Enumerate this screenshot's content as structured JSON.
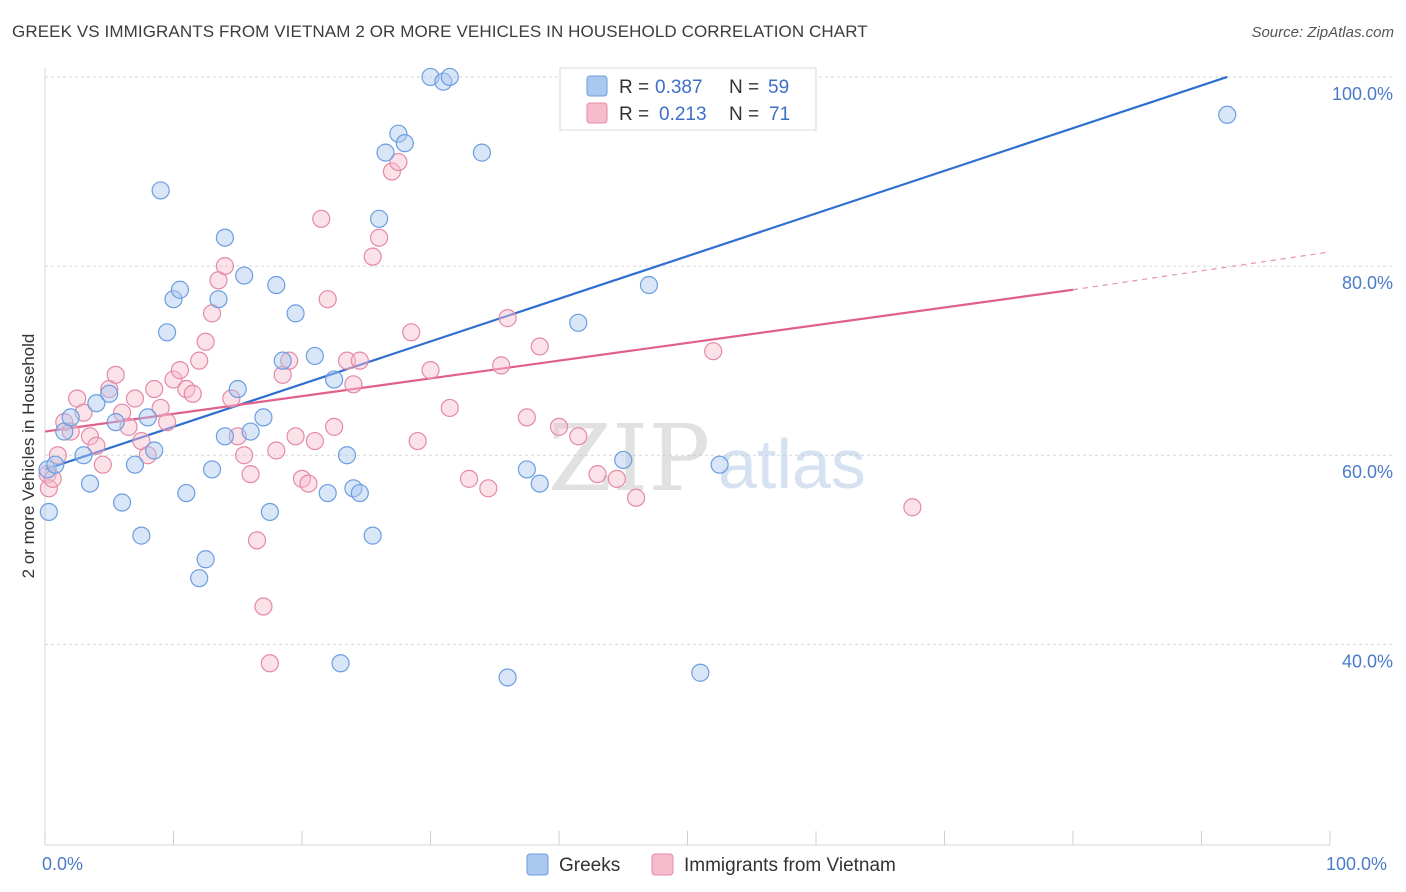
{
  "title": "GREEK VS IMMIGRANTS FROM VIETNAM 2 OR MORE VEHICLES IN HOUSEHOLD CORRELATION CHART",
  "source": "Source: ZipAtlas.com",
  "watermark": {
    "zip": "ZIP",
    "atlas": "atlas"
  },
  "colors": {
    "blue_fill": "#aac8f0",
    "blue_stroke": "#6b9ee0",
    "blue_line": "#2f6fd0",
    "pink_fill": "#f6bccd",
    "pink_stroke": "#e48aa6",
    "pink_line": "#e0608a",
    "grid": "#d6d6d6",
    "axis_label": "#4a7bc8"
  },
  "legend": {
    "rows": [
      {
        "r_label": "R =",
        "r_value": "0.387",
        "n_label": "N =",
        "n_value": "59",
        "color": "blue"
      },
      {
        "r_label": "R =",
        "r_value": "0.213",
        "n_label": "N =",
        "n_value": "71",
        "color": "pink"
      }
    ]
  },
  "chart_data": {
    "type": "scatter",
    "title": "GREEK VS IMMIGRANTS FROM VIETNAM 2 OR MORE VEHICLES IN HOUSEHOLD CORRELATION CHART",
    "xlabel": "",
    "ylabel": "2 or more Vehicles in Household",
    "xlim": [
      0,
      100
    ],
    "ylim": [
      20,
      101
    ],
    "x_tick_labels": [
      "0.0%",
      "100.0%"
    ],
    "y_ticks": [
      40,
      60,
      80,
      100
    ],
    "y_tick_labels": [
      "40.0%",
      "60.0%",
      "80.0%",
      "100.0%"
    ],
    "grid": true,
    "legend_position": "top-center",
    "series": [
      {
        "name": "Greeks",
        "color": "blue",
        "trend": {
          "x": [
            0,
            92
          ],
          "y": [
            58.5,
            100
          ]
        },
        "points": [
          [
            0.2,
            58.5
          ],
          [
            0.3,
            54
          ],
          [
            0.8,
            59
          ],
          [
            1.5,
            62.5
          ],
          [
            2,
            64
          ],
          [
            3,
            60
          ],
          [
            3.5,
            57
          ],
          [
            4,
            65.5
          ],
          [
            5,
            66.5
          ],
          [
            5.5,
            63.5
          ],
          [
            6,
            55
          ],
          [
            7,
            59
          ],
          [
            7.5,
            51.5
          ],
          [
            8,
            64
          ],
          [
            8.5,
            60.5
          ],
          [
            9,
            88
          ],
          [
            9.5,
            73
          ],
          [
            10,
            76.5
          ],
          [
            10.5,
            77.5
          ],
          [
            11,
            56
          ],
          [
            12,
            47
          ],
          [
            12.5,
            49
          ],
          [
            13,
            58.5
          ],
          [
            13.5,
            76.5
          ],
          [
            14,
            83
          ],
          [
            14,
            62
          ],
          [
            15,
            67
          ],
          [
            15.5,
            79
          ],
          [
            16,
            62.5
          ],
          [
            17,
            64
          ],
          [
            17.5,
            54
          ],
          [
            18,
            78
          ],
          [
            18.5,
            70
          ],
          [
            19.5,
            75
          ],
          [
            21,
            70.5
          ],
          [
            22,
            56
          ],
          [
            22.5,
            68
          ],
          [
            23,
            38
          ],
          [
            23.5,
            60
          ],
          [
            24,
            56.5
          ],
          [
            24.5,
            56
          ],
          [
            25.5,
            51.5
          ],
          [
            26,
            85
          ],
          [
            26.5,
            92
          ],
          [
            27.5,
            94
          ],
          [
            28,
            93
          ],
          [
            30,
            100
          ],
          [
            31,
            99.5
          ],
          [
            31.5,
            100
          ],
          [
            34,
            92
          ],
          [
            36,
            36.5
          ],
          [
            37.5,
            58.5
          ],
          [
            38.5,
            57
          ],
          [
            41.5,
            74
          ],
          [
            45,
            59.5
          ],
          [
            47,
            78
          ],
          [
            51,
            37
          ],
          [
            52.5,
            59
          ],
          [
            92,
            96
          ]
        ]
      },
      {
        "name": "Immigrants from Vietnam",
        "color": "pink",
        "trend": {
          "x": [
            0,
            80
          ],
          "y": [
            62.5,
            77.5
          ],
          "dashed_to": [
            100,
            81.5
          ]
        },
        "points": [
          [
            0.2,
            58
          ],
          [
            0.3,
            56.5
          ],
          [
            0.6,
            57.5
          ],
          [
            1,
            60
          ],
          [
            1.5,
            63.5
          ],
          [
            2,
            62.5
          ],
          [
            2.5,
            66
          ],
          [
            3,
            64.5
          ],
          [
            3.5,
            62
          ],
          [
            4,
            61
          ],
          [
            4.5,
            59
          ],
          [
            5,
            67
          ],
          [
            5.5,
            68.5
          ],
          [
            6,
            64.5
          ],
          [
            6.5,
            63
          ],
          [
            7,
            66
          ],
          [
            7.5,
            61.5
          ],
          [
            8,
            60
          ],
          [
            8.5,
            67
          ],
          [
            9,
            65
          ],
          [
            9.5,
            63.5
          ],
          [
            10,
            68
          ],
          [
            10.5,
            69
          ],
          [
            11,
            67
          ],
          [
            11.5,
            66.5
          ],
          [
            12,
            70
          ],
          [
            12.5,
            72
          ],
          [
            13,
            75
          ],
          [
            13.5,
            78.5
          ],
          [
            14,
            80
          ],
          [
            14.5,
            66
          ],
          [
            15,
            62
          ],
          [
            15.5,
            60
          ],
          [
            16,
            58
          ],
          [
            16.5,
            51
          ],
          [
            17,
            44
          ],
          [
            17.5,
            38
          ],
          [
            18,
            60.5
          ],
          [
            18.5,
            68.5
          ],
          [
            19,
            70
          ],
          [
            19.5,
            62
          ],
          [
            20,
            57.5
          ],
          [
            20.5,
            57
          ],
          [
            21,
            61.5
          ],
          [
            21.5,
            85
          ],
          [
            22,
            76.5
          ],
          [
            22.5,
            63
          ],
          [
            23.5,
            70
          ],
          [
            24,
            67.5
          ],
          [
            24.5,
            70
          ],
          [
            25.5,
            81
          ],
          [
            26,
            83
          ],
          [
            27,
            90
          ],
          [
            27.5,
            91
          ],
          [
            28.5,
            73
          ],
          [
            29,
            61.5
          ],
          [
            30,
            69
          ],
          [
            31.5,
            65
          ],
          [
            33,
            57.5
          ],
          [
            34.5,
            56.5
          ],
          [
            35.5,
            69.5
          ],
          [
            36,
            74.5
          ],
          [
            37.5,
            64
          ],
          [
            38.5,
            71.5
          ],
          [
            40,
            63
          ],
          [
            41.5,
            62
          ],
          [
            43,
            58
          ],
          [
            44.5,
            57.5
          ],
          [
            46,
            55.5
          ],
          [
            52,
            71
          ],
          [
            67.5,
            54.5
          ]
        ]
      }
    ]
  },
  "bottom_legend": [
    {
      "label": "Greeks",
      "color": "blue"
    },
    {
      "label": "Immigrants from Vietnam",
      "color": "pink"
    }
  ]
}
